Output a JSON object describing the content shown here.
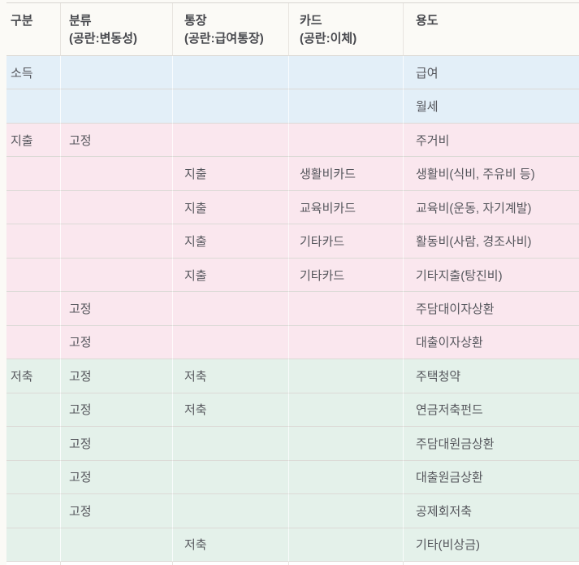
{
  "chart_data": {
    "type": "table",
    "title": "",
    "columns": [
      {
        "key": "category",
        "label": "구분",
        "sublabel": ""
      },
      {
        "key": "class",
        "label": "분류",
        "sublabel": "(공란:변동성)"
      },
      {
        "key": "account",
        "label": "통장",
        "sublabel": "(공란:급여통장)"
      },
      {
        "key": "card",
        "label": "카드",
        "sublabel": "(공란:이체)"
      },
      {
        "key": "purpose",
        "label": "용도",
        "sublabel": ""
      }
    ],
    "rows": [
      {
        "group": "income",
        "cells": [
          "소득",
          "",
          "",
          "",
          "급여"
        ]
      },
      {
        "group": "income",
        "cells": [
          "",
          "",
          "",
          "",
          "월세"
        ]
      },
      {
        "group": "expense",
        "cells": [
          "지출",
          "고정",
          "",
          "",
          "주거비"
        ]
      },
      {
        "group": "expense",
        "cells": [
          "",
          "",
          "지출",
          "생활비카드",
          "생활비(식비, 주유비 등)"
        ]
      },
      {
        "group": "expense",
        "cells": [
          "",
          "",
          "지출",
          "교육비카드",
          "교육비(운동, 자기계발)"
        ]
      },
      {
        "group": "expense",
        "cells": [
          "",
          "",
          "지출",
          "기타카드",
          "활동비(사람, 경조사비)"
        ]
      },
      {
        "group": "expense",
        "cells": [
          "",
          "",
          "지출",
          "기타카드",
          "기타지출(탕진비)"
        ]
      },
      {
        "group": "expense",
        "cells": [
          "",
          "고정",
          "",
          "",
          "주담대이자상환"
        ]
      },
      {
        "group": "expense",
        "cells": [
          "",
          "고정",
          "",
          "",
          "대출이자상환"
        ]
      },
      {
        "group": "saving",
        "cells": [
          "저축",
          "고정",
          "저축",
          "",
          "주택청약"
        ]
      },
      {
        "group": "saving",
        "cells": [
          "",
          "고정",
          "저축",
          "",
          "연금저축펀드"
        ]
      },
      {
        "group": "saving",
        "cells": [
          "",
          "고정",
          "",
          "",
          "주담대원금상환"
        ]
      },
      {
        "group": "saving",
        "cells": [
          "",
          "고정",
          "",
          "",
          "대출원금상환"
        ]
      },
      {
        "group": "saving",
        "cells": [
          "",
          "고정",
          "",
          "",
          "공제회저축"
        ]
      },
      {
        "group": "saving",
        "cells": [
          "",
          "",
          "저축",
          "",
          "기타(비상금)"
        ]
      }
    ],
    "groups": {
      "income": {
        "label": "소득",
        "color": "#e3eff8"
      },
      "expense": {
        "label": "지출",
        "color": "#fae7ee"
      },
      "saving": {
        "label": "저축",
        "color": "#e4f1ea"
      }
    }
  }
}
